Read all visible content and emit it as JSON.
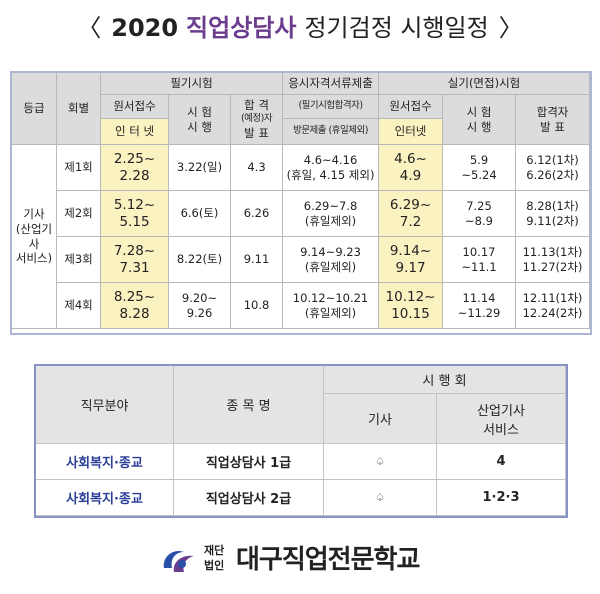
{
  "title": {
    "open": "〈",
    "year": "2020",
    "accent": "직업상담사",
    "rest": "정기검정 시행일정",
    "close": "〉"
  },
  "schedule": {
    "headers": {
      "grade": "등급",
      "round": "회별",
      "written": "필기시험",
      "application": "원서접수",
      "internet": "인 터 넷",
      "written_exam_l1": "시 험",
      "written_exam_l2": "시 행",
      "written_pass_l1": "합 격",
      "written_pass_l2": "(예정)자",
      "written_pass_l3": "발 표",
      "docs_l1": "응시자격서류제출",
      "docs_l2": "(필기시험합격자)",
      "docs_visit": "방문제출 (휴일제외)",
      "practical": "실기(면접)시험",
      "practical_application": "원서접수",
      "practical_internet": "인터넷",
      "practical_exam_l1": "시 험",
      "practical_exam_l2": "시 행",
      "practical_pass_l1": "합격자",
      "practical_pass_l2": "발 표"
    },
    "grade_label": [
      "기사",
      "(산업기사",
      "서비스)"
    ],
    "rows": [
      {
        "round": "제1회",
        "written_app": [
          "2.25~",
          "2.28"
        ],
        "written_exam": [
          "3.22(일)"
        ],
        "written_pass": "4.3",
        "docs": [
          "4.6~4.16",
          "(휴일, 4.15 제외)"
        ],
        "prac_app": [
          "4.6~",
          "4.9"
        ],
        "prac_exam": [
          "5.9",
          "~5.24"
        ],
        "prac_pass": [
          "6.12(1차)",
          "6.26(2차)"
        ]
      },
      {
        "round": "제2회",
        "written_app": [
          "5.12~",
          "5.15"
        ],
        "written_exam": [
          "6.6(토)"
        ],
        "written_pass": "6.26",
        "docs": [
          "6.29~7.8",
          "(휴일제외)"
        ],
        "prac_app": [
          "6.29~",
          "7.2"
        ],
        "prac_exam": [
          "7.25",
          "~8.9"
        ],
        "prac_pass": [
          "8.28(1차)",
          "9.11(2차)"
        ]
      },
      {
        "round": "제3회",
        "written_app": [
          "7.28~",
          "7.31"
        ],
        "written_exam": [
          "8.22(토)"
        ],
        "written_pass": "9.11",
        "docs": [
          "9.14~9.23",
          "(휴일제외)"
        ],
        "prac_app": [
          "9.14~",
          "9.17"
        ],
        "prac_exam": [
          "10.17",
          "~11.1"
        ],
        "prac_pass": [
          "11.13(1차)",
          "11.27(2차)"
        ]
      },
      {
        "round": "제4회",
        "written_app": [
          "8.25~",
          "8.28"
        ],
        "written_exam": [
          "9.20~",
          "9.26"
        ],
        "written_pass": "10.8",
        "docs": [
          "10.12~10.21",
          "(휴일제외)"
        ],
        "prac_app": [
          "10.12~",
          "10.15"
        ],
        "prac_exam": [
          "11.14",
          "~11.29"
        ],
        "prac_pass": [
          "12.11(1차)",
          "12.24(2차)"
        ]
      }
    ]
  },
  "jobs": {
    "headers": {
      "field": "직무분야",
      "item": "종 목 명",
      "rounds": "시 행 회",
      "engineer": "기사",
      "industrial_l1": "산업기사",
      "industrial_l2": "서비스"
    },
    "rows": [
      {
        "field": "사회복지·종교",
        "item": "직업상담사 1급",
        "engineer": "♤",
        "industrial": "4"
      },
      {
        "field": "사회복지·종교",
        "item": "직업상담사 2급",
        "engineer": "♤",
        "industrial": "1·2·3"
      }
    ]
  },
  "logo": {
    "small_l1": "재단",
    "small_l2": "법인",
    "name": "대구직업전문학교",
    "colors": {
      "blue": "#2a4fa8",
      "purple": "#6a3d8f"
    }
  }
}
